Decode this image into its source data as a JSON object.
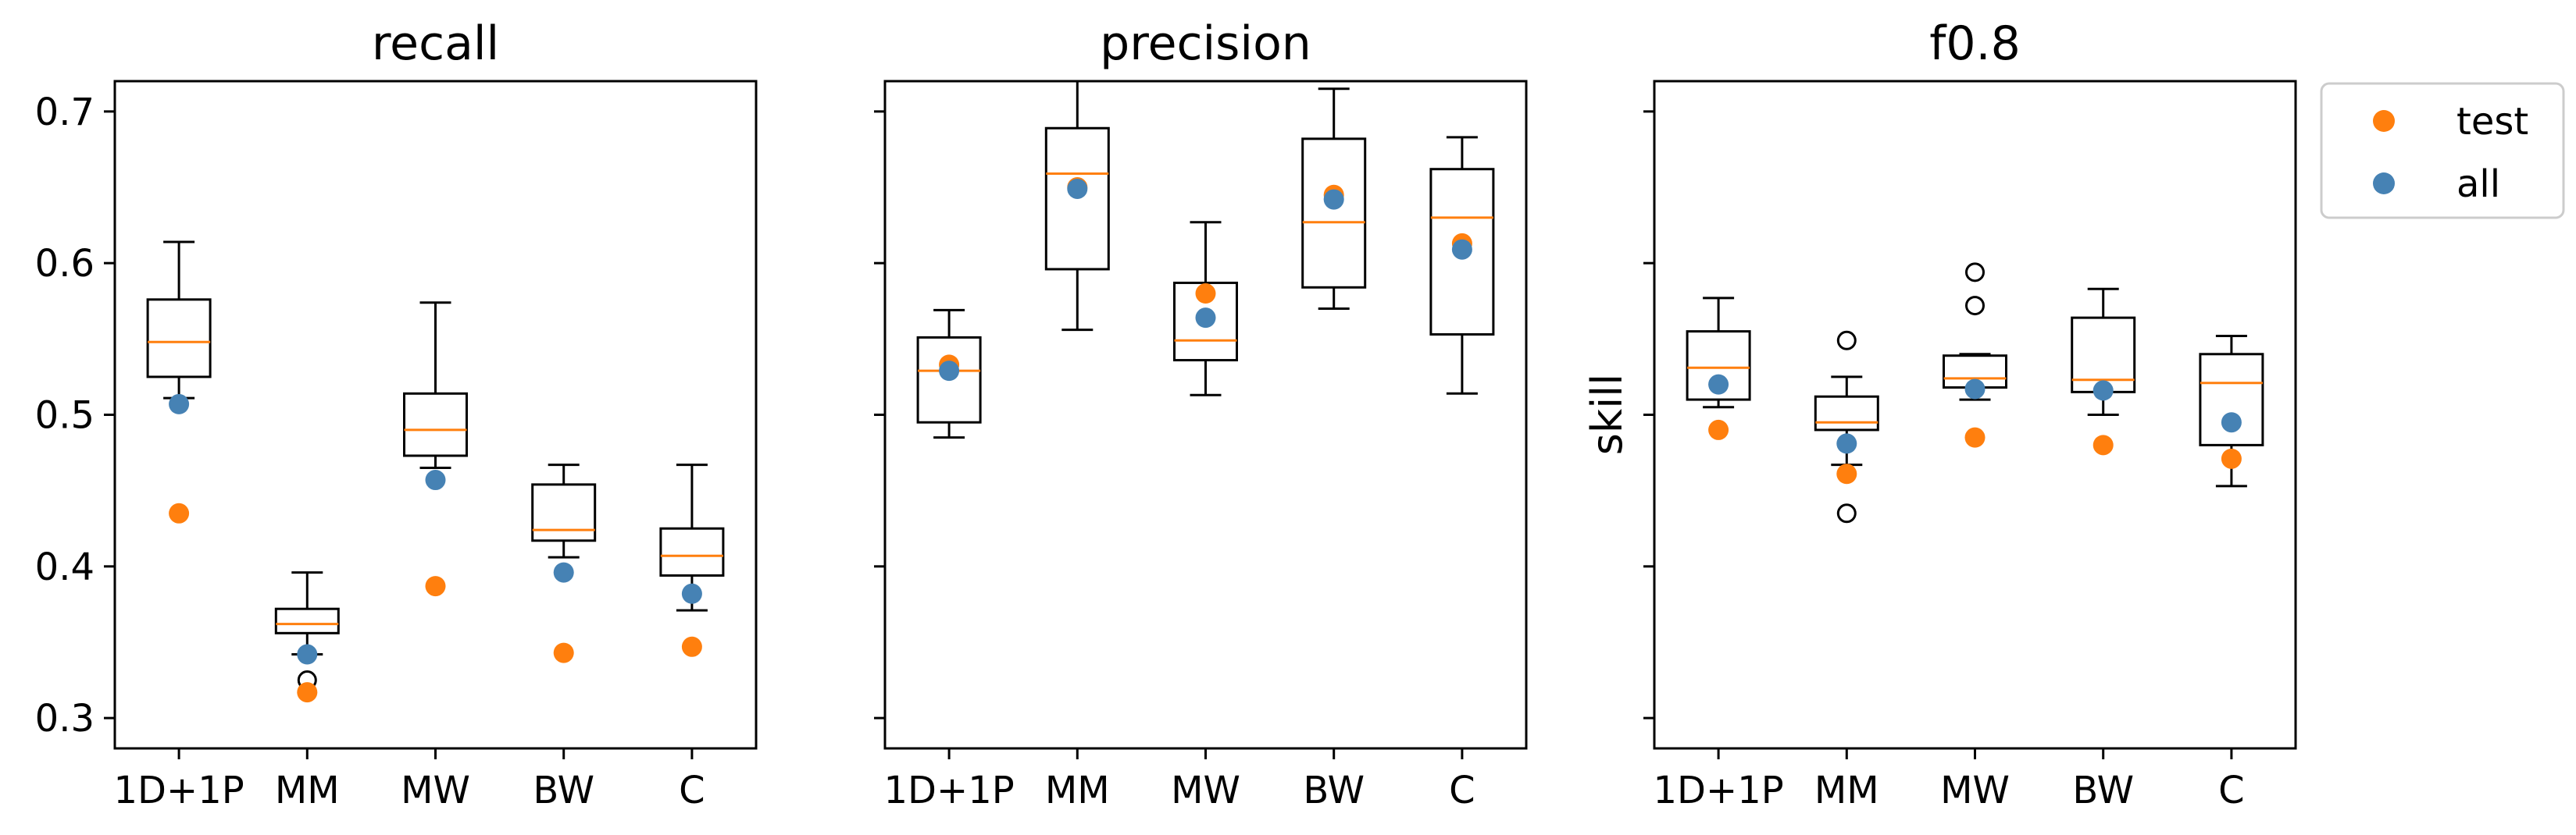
{
  "colors": {
    "median": "#ff7f0e",
    "test": "#ff7f0e",
    "all": "#4682b4",
    "box": "#000000"
  },
  "chart_data": [
    {
      "type": "box",
      "title": "recall",
      "ylabel": "",
      "ylim": [
        0.28,
        0.72
      ],
      "yticks": [
        "0.3",
        "0.4",
        "0.5",
        "0.6",
        "0.7"
      ],
      "categories": [
        "1D+1P",
        "MM",
        "MW",
        "BW",
        "C"
      ],
      "boxes": [
        {
          "q1": 0.525,
          "median": 0.548,
          "q3": 0.576,
          "whisker_low": 0.511,
          "whisker_high": 0.614,
          "fliers": []
        },
        {
          "q1": 0.356,
          "median": 0.362,
          "q3": 0.372,
          "whisker_low": 0.342,
          "whisker_high": 0.396,
          "fliers": [
            0.325
          ]
        },
        {
          "q1": 0.473,
          "median": 0.49,
          "q3": 0.514,
          "whisker_low": 0.465,
          "whisker_high": 0.574,
          "fliers": []
        },
        {
          "q1": 0.417,
          "median": 0.424,
          "q3": 0.454,
          "whisker_low": 0.406,
          "whisker_high": 0.467,
          "fliers": []
        },
        {
          "q1": 0.394,
          "median": 0.407,
          "q3": 0.425,
          "whisker_low": 0.371,
          "whisker_high": 0.467,
          "fliers": []
        }
      ],
      "series": [
        {
          "name": "test",
          "values": [
            0.435,
            0.317,
            0.387,
            0.343,
            0.347
          ]
        },
        {
          "name": "all",
          "values": [
            0.507,
            0.342,
            0.457,
            0.396,
            0.382
          ]
        }
      ]
    },
    {
      "type": "box",
      "title": "precision",
      "ylabel": "",
      "ylim": [
        0.28,
        0.72
      ],
      "yticks": [],
      "categories": [
        "1D+1P",
        "MM",
        "MW",
        "BW",
        "C"
      ],
      "boxes": [
        {
          "q1": 0.495,
          "median": 0.529,
          "q3": 0.551,
          "whisker_low": 0.485,
          "whisker_high": 0.569,
          "fliers": []
        },
        {
          "q1": 0.596,
          "median": 0.659,
          "q3": 0.689,
          "whisker_low": 0.556,
          "whisker_high": 0.72,
          "fliers": []
        },
        {
          "q1": 0.536,
          "median": 0.549,
          "q3": 0.587,
          "whisker_low": 0.513,
          "whisker_high": 0.627,
          "fliers": []
        },
        {
          "q1": 0.584,
          "median": 0.627,
          "q3": 0.682,
          "whisker_low": 0.57,
          "whisker_high": 0.715,
          "fliers": []
        },
        {
          "q1": 0.553,
          "median": 0.63,
          "q3": 0.662,
          "whisker_low": 0.514,
          "whisker_high": 0.683,
          "fliers": []
        }
      ],
      "series": [
        {
          "name": "test",
          "values": [
            0.533,
            0.65,
            0.58,
            0.645,
            0.613
          ]
        },
        {
          "name": "all",
          "values": [
            0.529,
            0.649,
            0.564,
            0.642,
            0.609
          ]
        }
      ]
    },
    {
      "type": "box",
      "title": "f0.8",
      "ylabel": "skill",
      "ylim": [
        0.28,
        0.72
      ],
      "yticks": [],
      "categories": [
        "1D+1P",
        "MM",
        "MW",
        "BW",
        "C"
      ],
      "boxes": [
        {
          "q1": 0.51,
          "median": 0.531,
          "q3": 0.555,
          "whisker_low": 0.505,
          "whisker_high": 0.577,
          "fliers": []
        },
        {
          "q1": 0.49,
          "median": 0.495,
          "q3": 0.512,
          "whisker_low": 0.467,
          "whisker_high": 0.525,
          "fliers": [
            0.549,
            0.435
          ]
        },
        {
          "q1": 0.518,
          "median": 0.524,
          "q3": 0.539,
          "whisker_low": 0.51,
          "whisker_high": 0.54,
          "fliers": [
            0.594,
            0.572
          ]
        },
        {
          "q1": 0.515,
          "median": 0.523,
          "q3": 0.564,
          "whisker_low": 0.5,
          "whisker_high": 0.583,
          "fliers": []
        },
        {
          "q1": 0.48,
          "median": 0.521,
          "q3": 0.54,
          "whisker_low": 0.453,
          "whisker_high": 0.552,
          "fliers": []
        }
      ],
      "series": [
        {
          "name": "test",
          "values": [
            0.49,
            0.461,
            0.485,
            0.48,
            0.471
          ]
        },
        {
          "name": "all",
          "values": [
            0.52,
            0.481,
            0.517,
            0.516,
            0.495
          ]
        }
      ]
    }
  ],
  "legend": {
    "placement": "outside-right-top",
    "entries": [
      {
        "label": "test",
        "color": "#ff7f0e"
      },
      {
        "label": "all",
        "color": "#4682b4"
      }
    ]
  }
}
